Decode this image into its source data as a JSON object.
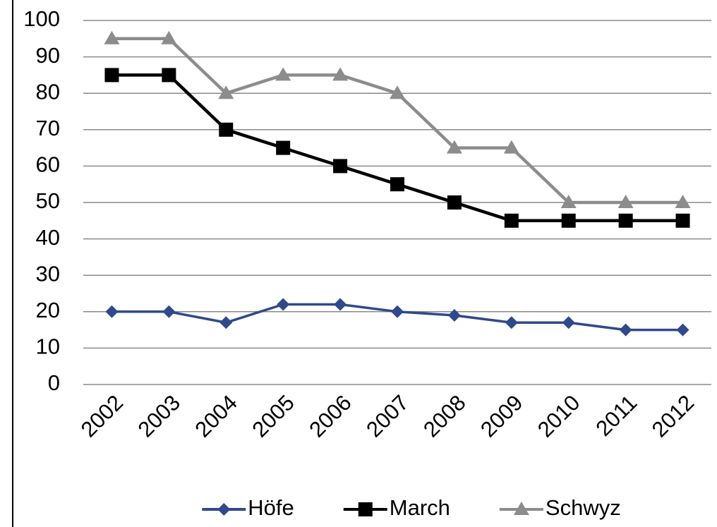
{
  "chart_data": {
    "type": "line",
    "categories": [
      "2002",
      "2003",
      "2004",
      "2005",
      "2006",
      "2007",
      "2008",
      "2009",
      "2010",
      "2011",
      "2012"
    ],
    "series": [
      {
        "name": "Höfe",
        "color": "#2e4a8c",
        "marker": "diamond",
        "values": [
          20,
          20,
          17,
          22,
          22,
          20,
          19,
          17,
          17,
          15,
          15
        ]
      },
      {
        "name": "March",
        "color": "#000000",
        "marker": "square",
        "values": [
          85,
          85,
          70,
          65,
          60,
          55,
          50,
          45,
          45,
          45,
          45
        ]
      },
      {
        "name": "Schwyz",
        "color": "#8c8c8c",
        "marker": "triangle",
        "values": [
          95,
          95,
          80,
          85,
          85,
          80,
          65,
          65,
          50,
          50,
          50
        ]
      }
    ],
    "ylim": [
      0,
      100
    ],
    "yticks": [
      0,
      10,
      20,
      30,
      40,
      50,
      60,
      70,
      80,
      90,
      100
    ],
    "grid": true,
    "legend": "bottom"
  }
}
